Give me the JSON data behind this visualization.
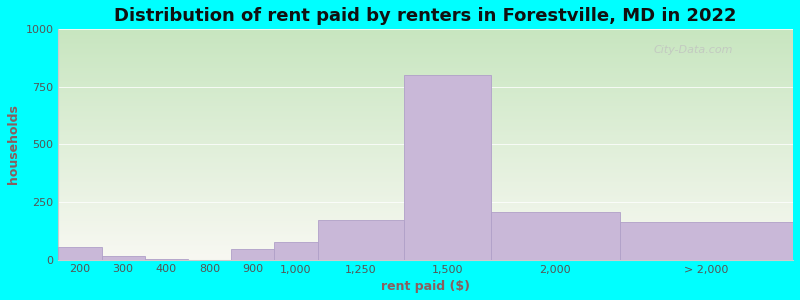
{
  "title": "Distribution of rent paid by renters in Forestville, MD in 2022",
  "xlabel": "rent paid ($)",
  "ylabel": "households",
  "background_color": "#00FFFF",
  "plot_bg_color_topleft": "#c8e6c0",
  "plot_bg_color_bottomright": "#f8f8f2",
  "bar_color": "#c9b8d8",
  "bar_edge_color": "#b0a0c8",
  "ylim": [
    0,
    1000
  ],
  "yticks": [
    0,
    250,
    500,
    750,
    1000
  ],
  "categories": [
    "200",
    "300",
    "400",
    "800",
    "900",
    "1,000",
    "1,250",
    "1,500",
    "2,000",
    "> 2,000"
  ],
  "values": [
    55,
    15,
    2,
    0,
    45,
    75,
    170,
    800,
    205,
    165
  ],
  "title_fontsize": 13,
  "axis_label_fontsize": 9,
  "tick_fontsize": 8,
  "watermark": "City-Data.com"
}
